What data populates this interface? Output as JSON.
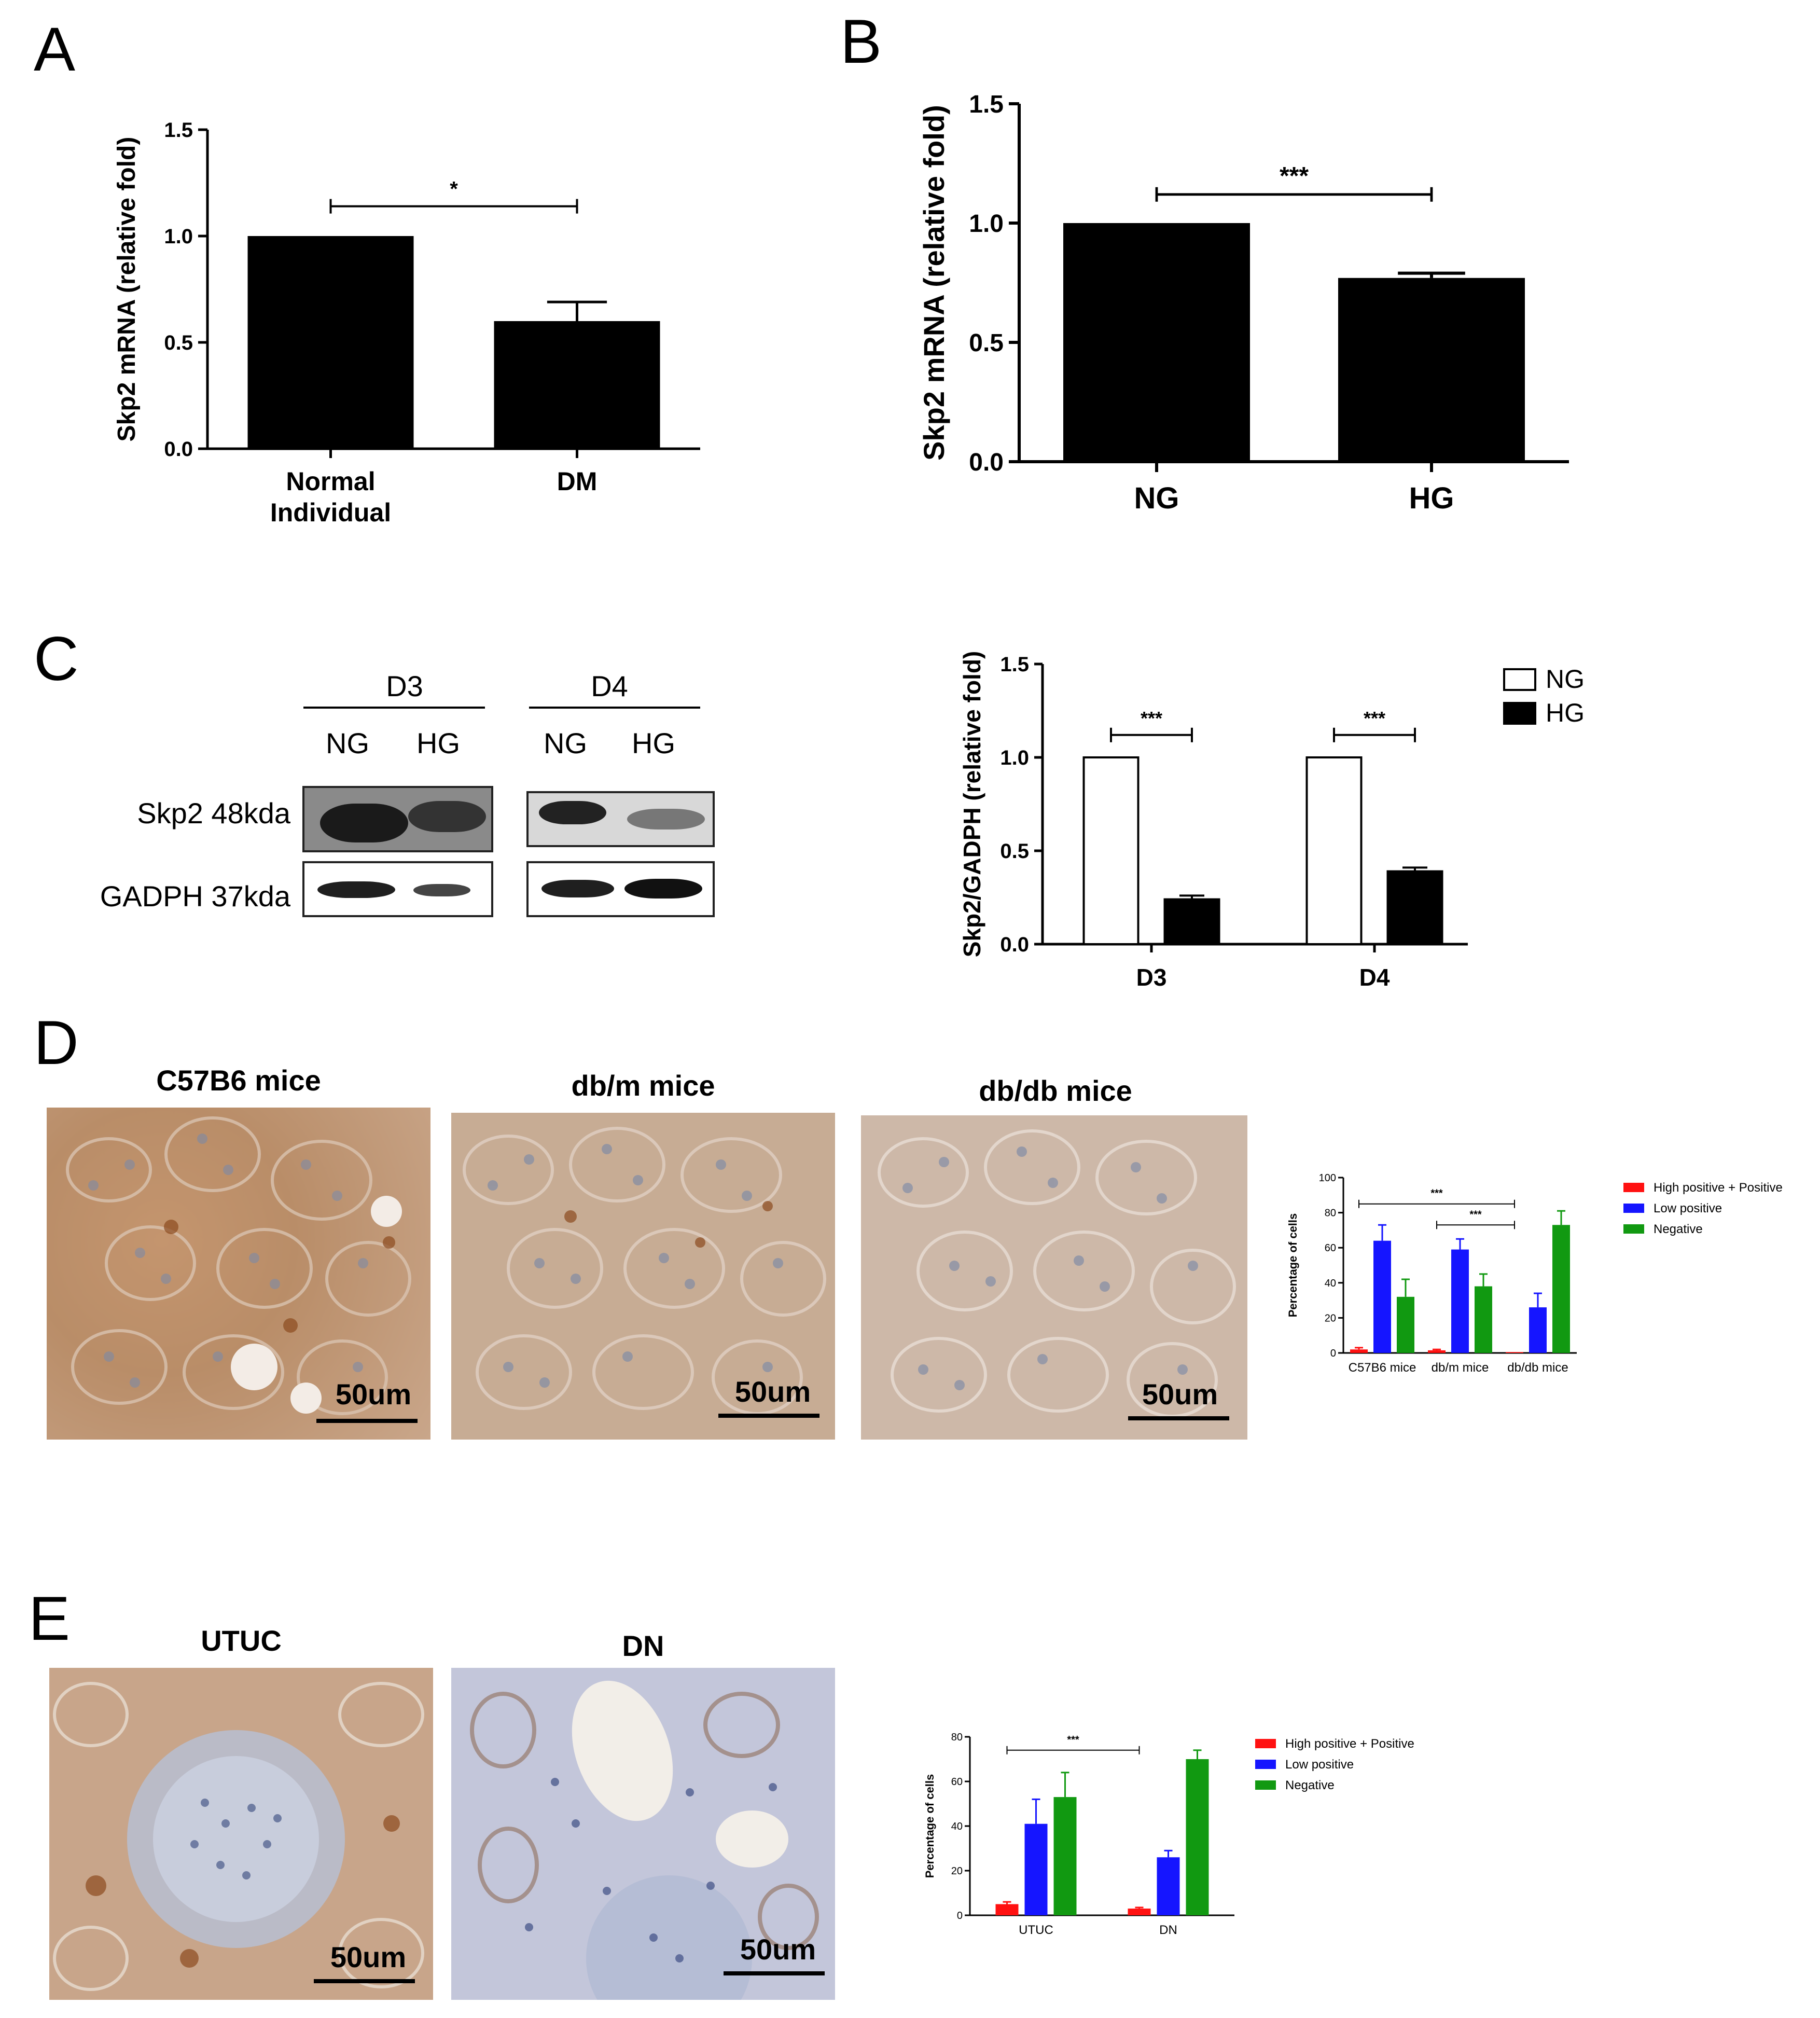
{
  "panels": {
    "A": "A",
    "B": "B",
    "C": "C",
    "D": "D",
    "E": "E"
  },
  "colors": {
    "black": "#000000",
    "red": "#ff1111",
    "blue": "#1515ff",
    "green": "#119911",
    "tissue_brown": "#c79a73",
    "tissue_blue": "#b6c0d8"
  },
  "chart_data": [
    {
      "id": "A",
      "type": "bar",
      "categories": [
        "Normal Individual",
        "DM"
      ],
      "category_lines": [
        [
          "Normal",
          "Individual"
        ],
        [
          "DM"
        ]
      ],
      "values": [
        1.0,
        0.6
      ],
      "errors": [
        0,
        0.09
      ],
      "ylabel": "Skp2 mRNA (relative fold)",
      "ylim": [
        0,
        1.5
      ],
      "yticks": [
        "0.0",
        "0.5",
        "1.0",
        "1.5"
      ],
      "ytick_values": [
        0,
        0.5,
        1.0,
        1.5
      ],
      "significance": [
        {
          "label": "*",
          "from": 0,
          "to": 1,
          "y": 1.14
        }
      ]
    },
    {
      "id": "B",
      "type": "bar",
      "categories": [
        "NG",
        "HG"
      ],
      "category_lines": [
        [
          "NG"
        ],
        [
          "HG"
        ]
      ],
      "values": [
        1.0,
        0.77
      ],
      "errors": [
        0,
        0.02
      ],
      "ylabel": "Skp2 mRNA (relative fold)",
      "ylim": [
        0,
        1.5
      ],
      "yticks": [
        "0.0",
        "0.5",
        "1.0",
        "1.5"
      ],
      "ytick_values": [
        0,
        0.5,
        1.0,
        1.5
      ],
      "significance": [
        {
          "label": "***",
          "from": 0,
          "to": 1,
          "y": 1.12
        }
      ]
    },
    {
      "id": "C",
      "type": "bar",
      "categories": [
        "D3",
        "D4"
      ],
      "series": [
        {
          "name": "NG",
          "values": [
            1.0,
            1.0
          ],
          "errors": [
            0,
            0
          ]
        },
        {
          "name": "HG",
          "values": [
            0.24,
            0.39
          ],
          "errors": [
            0.02,
            0.02
          ]
        }
      ],
      "ylabel": "Skp2/GADPH (relative fold)",
      "ylim": [
        0,
        1.5
      ],
      "yticks": [
        "0.0",
        "0.5",
        "1.0",
        "1.5"
      ],
      "ytick_values": [
        0,
        0.5,
        1.0,
        1.5
      ],
      "significance": [
        {
          "label": "***",
          "group": 0,
          "y": 1.12
        },
        {
          "label": "***",
          "group": 1,
          "y": 1.12
        }
      ],
      "legend": "top-right"
    },
    {
      "id": "D",
      "type": "bar",
      "categories": [
        "C57B6 mice",
        "db/m mice",
        "db/db mice"
      ],
      "series": [
        {
          "name": "High positive + Positive",
          "color": "#ff1111",
          "values": [
            2,
            1.5,
            0.5
          ],
          "errors": [
            1,
            0.5,
            0
          ]
        },
        {
          "name": "Low positive",
          "color": "#1515ff",
          "values": [
            64,
            59,
            26
          ],
          "errors": [
            9,
            6,
            8
          ]
        },
        {
          "name": "Negative",
          "color": "#119911",
          "values": [
            32,
            38,
            73
          ],
          "errors": [
            10,
            7,
            8
          ]
        }
      ],
      "ylabel": "Percentage of cells",
      "ylim": [
        0,
        100
      ],
      "yticks": [
        "0",
        "20",
        "40",
        "60",
        "80",
        "100"
      ],
      "ytick_values": [
        0,
        20,
        40,
        60,
        80,
        100
      ],
      "significance": [
        {
          "label": "***",
          "from": 0,
          "to": 2,
          "y": 85
        },
        {
          "label": "***",
          "from": 1,
          "to": 2,
          "y": 73
        }
      ],
      "legend": "right"
    },
    {
      "id": "E",
      "type": "bar",
      "categories": [
        "UTUC",
        "DN"
      ],
      "series": [
        {
          "name": "High positive + Positive",
          "color": "#ff1111",
          "values": [
            5,
            3
          ],
          "errors": [
            1,
            0.5
          ]
        },
        {
          "name": "Low positive",
          "color": "#1515ff",
          "values": [
            41,
            26
          ],
          "errors": [
            11,
            3
          ]
        },
        {
          "name": "Negative",
          "color": "#119911",
          "values": [
            53,
            70
          ],
          "errors": [
            11,
            4
          ]
        }
      ],
      "ylabel": "Percentage of cells",
      "ylim": [
        0,
        80
      ],
      "yticks": [
        "0",
        "20",
        "40",
        "60",
        "80"
      ],
      "ytick_values": [
        0,
        20,
        40,
        60,
        80
      ],
      "significance": [
        {
          "label": "***",
          "from": 0,
          "to": 1,
          "y": 74
        }
      ],
      "legend": "right"
    }
  ],
  "blot": {
    "groups": [
      "D3",
      "D4"
    ],
    "lanes": [
      "NG",
      "HG",
      "NG",
      "HG"
    ],
    "rows": [
      "Skp2 48kda",
      "GADPH 37kda"
    ]
  },
  "histology": {
    "D": [
      {
        "title": "C57B6 mice",
        "scale": "50um"
      },
      {
        "title": "db/m mice",
        "scale": "50um"
      },
      {
        "title": "db/db mice",
        "scale": "50um"
      }
    ],
    "E": [
      {
        "title": "UTUC",
        "scale": "50um"
      },
      {
        "title": "DN",
        "scale": "50um"
      }
    ]
  }
}
